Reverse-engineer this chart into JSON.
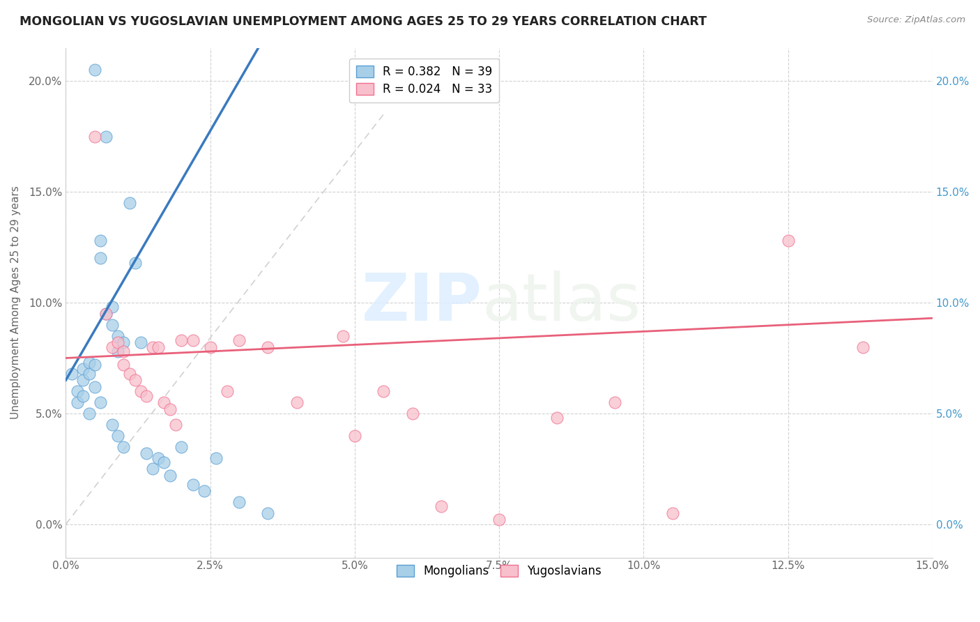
{
  "title": "MONGOLIAN VS YUGOSLAVIAN UNEMPLOYMENT AMONG AGES 25 TO 29 YEARS CORRELATION CHART",
  "source": "Source: ZipAtlas.com",
  "ylabel": "Unemployment Among Ages 25 to 29 years",
  "xlim": [
    0.0,
    0.15
  ],
  "ylim": [
    -0.015,
    0.215
  ],
  "xticks": [
    0.0,
    0.025,
    0.05,
    0.075,
    0.1,
    0.125,
    0.15
  ],
  "xtick_labels": [
    "0.0%",
    "2.5%",
    "5.0%",
    "7.5%",
    "10.0%",
    "12.5%",
    "15.0%"
  ],
  "yticks": [
    0.0,
    0.05,
    0.1,
    0.15,
    0.2
  ],
  "ytick_labels": [
    "0.0%",
    "5.0%",
    "10.0%",
    "15.0%",
    "20.0%"
  ],
  "mongolian_color": "#a8cfe8",
  "yugoslavian_color": "#f8c0cc",
  "mongolian_edge_color": "#5b9fd4",
  "yugoslavian_edge_color": "#f07090",
  "mongolian_line_color": "#3a7abf",
  "yugoslavian_line_color": "#e8607a",
  "diagonal_color": "#cccccc",
  "legend_mongolian": "R = 0.382   N = 39",
  "legend_yugoslavian": "R = 0.024   N = 33",
  "watermark_zip": "ZIP",
  "watermark_atlas": "atlas",
  "mongolian_x": [
    0.001,
    0.002,
    0.002,
    0.003,
    0.003,
    0.003,
    0.004,
    0.004,
    0.004,
    0.005,
    0.005,
    0.005,
    0.006,
    0.006,
    0.006,
    0.007,
    0.007,
    0.008,
    0.008,
    0.008,
    0.009,
    0.009,
    0.009,
    0.01,
    0.01,
    0.011,
    0.012,
    0.013,
    0.014,
    0.015,
    0.016,
    0.017,
    0.018,
    0.02,
    0.022,
    0.024,
    0.026,
    0.03,
    0.035
  ],
  "mongolian_y": [
    0.068,
    0.06,
    0.055,
    0.07,
    0.065,
    0.058,
    0.073,
    0.068,
    0.05,
    0.205,
    0.072,
    0.062,
    0.128,
    0.12,
    0.055,
    0.175,
    0.095,
    0.098,
    0.09,
    0.045,
    0.085,
    0.078,
    0.04,
    0.082,
    0.035,
    0.145,
    0.118,
    0.082,
    0.032,
    0.025,
    0.03,
    0.028,
    0.022,
    0.035,
    0.018,
    0.015,
    0.03,
    0.01,
    0.005
  ],
  "yugoslavian_x": [
    0.005,
    0.007,
    0.008,
    0.009,
    0.01,
    0.01,
    0.011,
    0.012,
    0.013,
    0.014,
    0.015,
    0.016,
    0.017,
    0.018,
    0.019,
    0.02,
    0.022,
    0.025,
    0.028,
    0.03,
    0.035,
    0.04,
    0.048,
    0.055,
    0.06,
    0.065,
    0.075,
    0.085,
    0.095,
    0.105,
    0.125,
    0.138,
    0.05
  ],
  "yugoslavian_y": [
    0.175,
    0.095,
    0.08,
    0.082,
    0.078,
    0.072,
    0.068,
    0.065,
    0.06,
    0.058,
    0.08,
    0.08,
    0.055,
    0.052,
    0.045,
    0.083,
    0.083,
    0.08,
    0.06,
    0.083,
    0.08,
    0.055,
    0.085,
    0.06,
    0.05,
    0.008,
    0.002,
    0.048,
    0.055,
    0.005,
    0.128,
    0.08,
    0.04
  ]
}
